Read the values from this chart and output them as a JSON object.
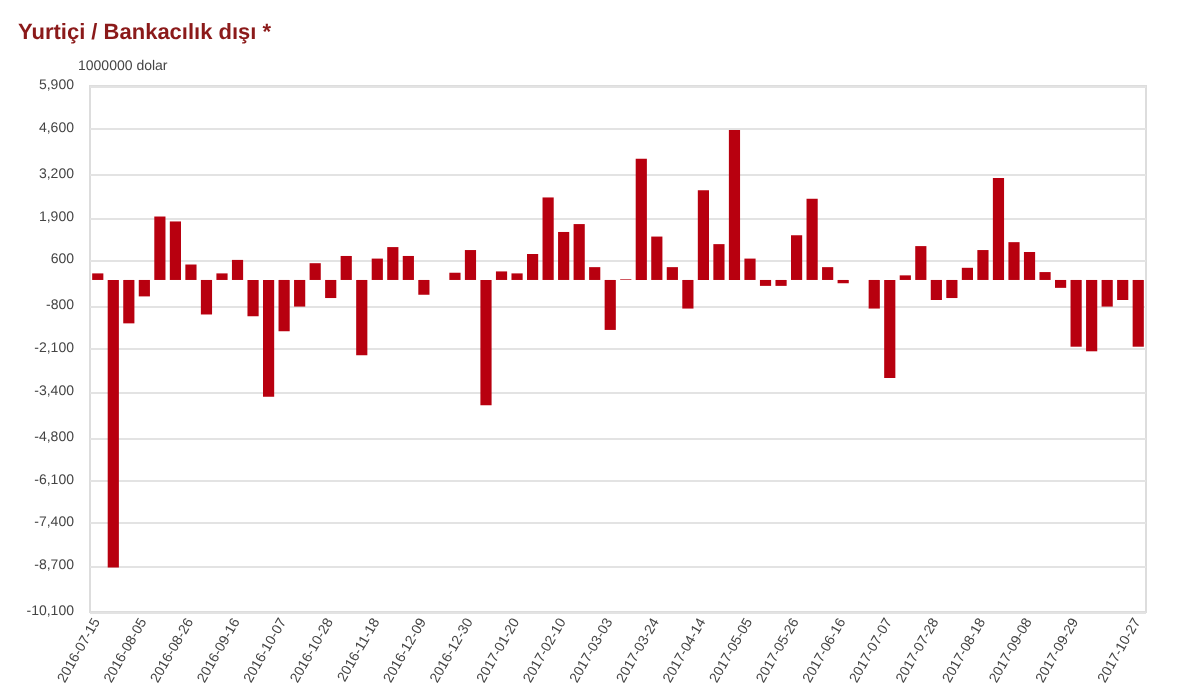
{
  "chart_data": {
    "type": "bar",
    "title": "Yurtiçi / Bankacılık dışı *",
    "ylabel": "1000000 dolar",
    "categories": [
      "2016-07-15",
      null,
      null,
      "2016-08-05",
      null,
      null,
      "2016-08-26",
      null,
      null,
      "2016-09-16",
      null,
      null,
      "2016-10-07",
      null,
      null,
      "2016-10-28",
      null,
      null,
      "2016-11-18",
      null,
      null,
      "2016-12-09",
      null,
      null,
      "2016-12-30",
      null,
      null,
      "2017-01-20",
      null,
      null,
      "2017-02-10",
      null,
      null,
      "2017-03-03",
      null,
      null,
      "2017-03-24",
      null,
      null,
      "2017-04-14",
      null,
      null,
      "2017-05-05",
      null,
      null,
      "2017-05-26",
      null,
      null,
      "2017-06-16",
      null,
      null,
      "2017-07-07",
      null,
      null,
      "2017-07-28",
      null,
      null,
      "2017-08-18",
      null,
      null,
      "2017-09-08",
      null,
      null,
      "2017-09-29",
      null,
      null,
      null,
      "2017-10-27"
    ],
    "values": [
      200,
      -8750,
      -1320,
      -500,
      1930,
      1780,
      470,
      -1050,
      200,
      610,
      -1100,
      -3550,
      -1560,
      -810,
      510,
      -550,
      730,
      -2290,
      650,
      1000,
      730,
      -450,
      0,
      220,
      910,
      -3810,
      260,
      200,
      790,
      2510,
      1460,
      1700,
      390,
      -1520,
      20,
      3690,
      1320,
      390,
      -870,
      2730,
      1090,
      4560,
      650,
      -180,
      -180,
      1360,
      2470,
      390,
      -100,
      null,
      -870,
      -2980,
      140,
      1030,
      -610,
      -550,
      370,
      910,
      3100,
      1150,
      850,
      240,
      -240,
      -2030,
      -2170,
      -810,
      -610,
      -2030
    ],
    "color": "#b8000f",
    "ylim": [
      -10100,
      5900
    ],
    "yticks": [
      {
        "value": -10100,
        "label": "-10,100"
      },
      {
        "value": -8700,
        "label": "-8,700"
      },
      {
        "value": -7400,
        "label": "-7,400"
      },
      {
        "value": -6100,
        "label": "-6,100"
      },
      {
        "value": -4800,
        "label": "-4,800"
      },
      {
        "value": -3400,
        "label": "-3,400"
      },
      {
        "value": -2100,
        "label": "-2,100"
      },
      -800,
      600,
      {
        "value": 1900,
        "label": "1,900"
      },
      {
        "value": 3200,
        "label": "3,200"
      },
      {
        "value": 4600,
        "label": "4,600"
      },
      {
        "value": 5900,
        "label": "5,900"
      }
    ],
    "grid": "y"
  }
}
